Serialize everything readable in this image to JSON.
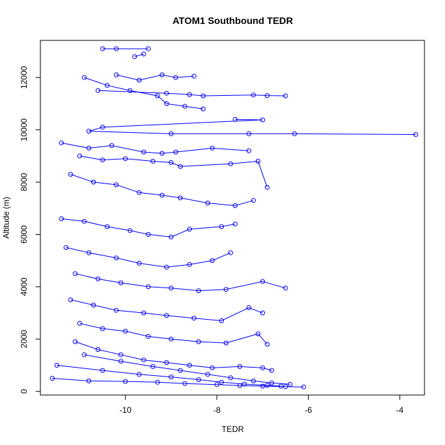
{
  "chart_data": {
    "type": "line",
    "title": "ATOM1 Southbound TEDR",
    "xlabel": "TEDR",
    "ylabel": "Altitude (m)",
    "xlim": [
      -11.86,
      -3.46
    ],
    "ylim": [
      -140,
      13420
    ],
    "x_ticks": [
      -10,
      -8,
      -6,
      -4
    ],
    "y_ticks": [
      0,
      2000,
      4000,
      6000,
      8000,
      10000,
      12000
    ],
    "grid": false,
    "legend": "none",
    "marker": "open-circle",
    "color": "#0000ff",
    "series": [
      {
        "x": [
          -10.5,
          -10.2,
          -9.5
        ],
        "y": [
          13100,
          13100,
          13100
        ]
      },
      {
        "x": [
          -9.8,
          -9.6
        ],
        "y": [
          12800,
          12900
        ]
      },
      {
        "x": [
          -10.9,
          -10.4,
          -9.9,
          -9.3,
          -9.1,
          -8.7,
          -8.3
        ],
        "y": [
          12000,
          11700,
          11500,
          11300,
          11000,
          10900,
          10800
        ]
      },
      {
        "x": [
          -10.6,
          -9.1,
          -8.6,
          -8.3,
          -7.2,
          -6.9,
          -6.5
        ],
        "y": [
          11500,
          11400,
          11350,
          11300,
          11330,
          11310,
          11300
        ]
      },
      {
        "x": [
          -7.6,
          -7.0,
          -10.5,
          -10.8,
          -9.0,
          -7.3,
          -6.3,
          -3.65
        ],
        "y": [
          10400,
          10380,
          10100,
          9950,
          9850,
          9850,
          9850,
          9820
        ]
      },
      {
        "x": [
          -11.4,
          -10.8,
          -10.3,
          -9.6,
          -9.2,
          -8.9,
          -8.1,
          -7.3
        ],
        "y": [
          9500,
          9300,
          9400,
          9150,
          9100,
          9150,
          9300,
          9200
        ]
      },
      {
        "x": [
          -11.0,
          -10.5,
          -10.0,
          -9.4,
          -9.0,
          -8.8,
          -7.7,
          -7.1,
          -6.9
        ],
        "y": [
          9000,
          8850,
          8900,
          8800,
          8750,
          8600,
          8700,
          8800,
          7800
        ]
      },
      {
        "x": [
          -11.2,
          -10.7,
          -10.2,
          -9.7,
          -9.2,
          -8.8,
          -8.2,
          -7.6,
          -7.2
        ],
        "y": [
          8300,
          8000,
          7900,
          7600,
          7500,
          7400,
          7200,
          7100,
          7300
        ]
      },
      {
        "x": [
          -11.4,
          -10.9,
          -10.4,
          -9.9,
          -9.5,
          -9.0,
          -8.6,
          -7.9,
          -7.6
        ],
        "y": [
          6600,
          6500,
          6300,
          6150,
          6000,
          5900,
          6200,
          6300,
          6400
        ]
      },
      {
        "x": [
          -11.3,
          -10.8,
          -10.2,
          -9.7,
          -9.1,
          -8.6,
          -8.1,
          -7.7
        ],
        "y": [
          5500,
          5300,
          5100,
          4900,
          4750,
          4850,
          5000,
          5300
        ]
      },
      {
        "x": [
          -11.1,
          -10.6,
          -10.1,
          -9.5,
          -9.0,
          -8.4,
          -7.8,
          -7.0,
          -6.5
        ],
        "y": [
          4500,
          4300,
          4150,
          4000,
          3950,
          3850,
          3900,
          4200,
          3950
        ]
      },
      {
        "x": [
          -11.2,
          -10.7,
          -10.2,
          -9.6,
          -9.1,
          -8.5,
          -7.9,
          -7.3,
          -7.0
        ],
        "y": [
          3500,
          3300,
          3100,
          3000,
          2900,
          2800,
          2700,
          3200,
          3000
        ]
      },
      {
        "x": [
          -11.0,
          -10.5,
          -10.0,
          -9.5,
          -9.0,
          -8.4,
          -7.8,
          -7.1,
          -6.9
        ],
        "y": [
          2600,
          2400,
          2300,
          2100,
          2000,
          1900,
          1850,
          2200,
          1800
        ]
      },
      {
        "x": [
          -11.1,
          -10.6,
          -10.1,
          -9.6,
          -9.1,
          -8.6,
          -8.1,
          -7.5,
          -7.0,
          -6.8
        ],
        "y": [
          1900,
          1600,
          1400,
          1200,
          1100,
          1000,
          900,
          950,
          900,
          800
        ]
      },
      {
        "x": [
          -11.6,
          -10.8,
          -10.0,
          -9.3,
          -8.7,
          -8.0,
          -7.5,
          -7.0,
          -6.5,
          -6.1
        ],
        "y": [
          500,
          400,
          380,
          350,
          300,
          260,
          220,
          200,
          180,
          170
        ]
      },
      {
        "x": [
          -11.5,
          -10.5,
          -9.7,
          -9.0,
          -8.4,
          -7.9,
          -7.4,
          -6.9,
          -6.6
        ],
        "y": [
          1000,
          800,
          650,
          550,
          450,
          350,
          280,
          230,
          200
        ]
      },
      {
        "x": [
          -10.9,
          -10.1,
          -9.4,
          -8.8,
          -8.2,
          -7.7,
          -7.2,
          -6.8,
          -6.4
        ],
        "y": [
          1400,
          1150,
          950,
          800,
          650,
          520,
          400,
          320,
          270
        ]
      },
      {
        "x": [
          -10.2,
          -9.7,
          -9.2,
          -8.9,
          -8.5
        ],
        "y": [
          12100,
          11900,
          12100,
          12000,
          12050
        ]
      }
    ]
  }
}
